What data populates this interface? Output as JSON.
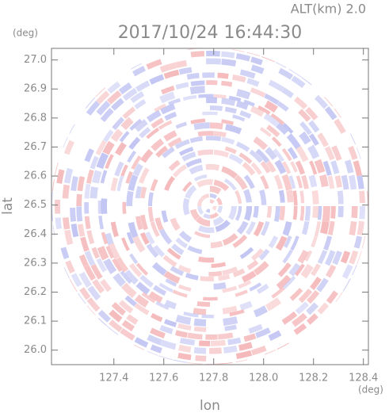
{
  "chart_data": {
    "type": "radar",
    "title": "2017/10/24 16:44:30",
    "subtitle": "ALT(km) 2.0",
    "x_label": "lon",
    "y_label": "lat",
    "x_unit": "(deg)",
    "y_unit": "(deg)",
    "xlim": [
      127.15,
      128.42
    ],
    "ylim": [
      25.95,
      27.04
    ],
    "xticks": [
      127.4,
      127.6,
      127.8,
      {
        "value": 128.0,
        "label": "128.0"
      },
      128.2,
      128.4
    ],
    "yticks": [
      {
        "value": 26.0,
        "label": "26.0"
      },
      26.1,
      26.2,
      26.3,
      26.4,
      26.5,
      26.6,
      26.7,
      26.8,
      26.9,
      {
        "value": 27.0,
        "label": "27.0"
      }
    ],
    "colors": [
      "#f5b9bb",
      "#c3c6f3"
    ]
  }
}
